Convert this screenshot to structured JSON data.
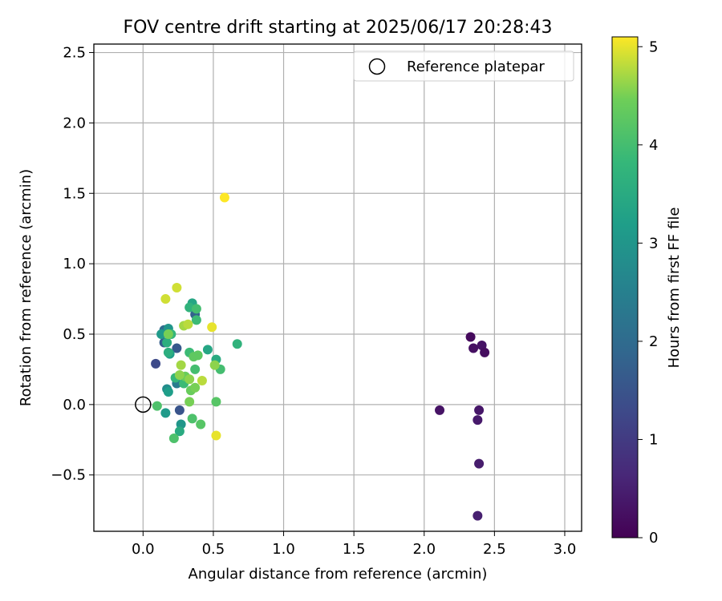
{
  "chart_data": {
    "type": "scatter",
    "title": "FOV centre drift starting at 2025/06/17 20:28:43",
    "xlabel": "Angular distance from reference (arcmin)",
    "ylabel": "Rotation from reference (arcmin)",
    "xlim": [
      -0.35,
      3.12
    ],
    "ylim": [
      -0.9,
      2.56
    ],
    "xticks": [
      0.0,
      0.5,
      1.0,
      1.5,
      2.0,
      2.5,
      3.0
    ],
    "xtick_labels": [
      "0.0",
      "0.5",
      "1.0",
      "1.5",
      "2.0",
      "2.5",
      "3.0"
    ],
    "yticks": [
      -0.5,
      0.0,
      0.5,
      1.0,
      1.5,
      2.0,
      2.5
    ],
    "ytick_labels": [
      "−0.5",
      "0.0",
      "0.5",
      "1.0",
      "1.5",
      "2.0",
      "2.5"
    ],
    "grid": true,
    "legend": {
      "position": "top-right",
      "entries": [
        "Reference platepar"
      ]
    },
    "reference_point": {
      "x": 0.0,
      "y": 0.0
    },
    "colorbar": {
      "label": "Hours from first FF file",
      "range": [
        0,
        5.1
      ],
      "ticks": [
        0,
        1,
        2,
        3,
        4,
        5
      ],
      "tick_labels": [
        "0",
        "1",
        "2",
        "3",
        "4",
        "5"
      ],
      "colormap": "viridis"
    },
    "points": [
      {
        "x": 2.33,
        "y": 0.48,
        "h": 0.15
      },
      {
        "x": 2.35,
        "y": 0.4,
        "h": 0.25
      },
      {
        "x": 2.41,
        "y": 0.42,
        "h": 0.3
      },
      {
        "x": 2.43,
        "y": 0.37,
        "h": 0.2
      },
      {
        "x": 2.11,
        "y": -0.04,
        "h": 0.3
      },
      {
        "x": 2.39,
        "y": -0.04,
        "h": 0.35
      },
      {
        "x": 2.38,
        "y": -0.11,
        "h": 0.4
      },
      {
        "x": 2.39,
        "y": -0.42,
        "h": 0.45
      },
      {
        "x": 2.38,
        "y": -0.79,
        "h": 0.5
      },
      {
        "x": 0.09,
        "y": 0.29,
        "h": 1.3
      },
      {
        "x": 0.26,
        "y": -0.04,
        "h": 1.5
      },
      {
        "x": 0.24,
        "y": 0.4,
        "h": 1.6
      },
      {
        "x": 0.15,
        "y": 0.44,
        "h": 1.7
      },
      {
        "x": 0.37,
        "y": 0.64,
        "h": 1.8
      },
      {
        "x": 0.15,
        "y": 0.53,
        "h": 2.0
      },
      {
        "x": 0.24,
        "y": 0.15,
        "h": 2.4
      },
      {
        "x": 0.17,
        "y": 0.11,
        "h": 2.8
      },
      {
        "x": 0.27,
        "y": -0.14,
        "h": 3.0
      },
      {
        "x": 0.18,
        "y": 0.54,
        "h": 3.0
      },
      {
        "x": 0.13,
        "y": 0.5,
        "h": 3.1
      },
      {
        "x": 0.16,
        "y": -0.06,
        "h": 3.1
      },
      {
        "x": 0.18,
        "y": 0.09,
        "h": 3.2
      },
      {
        "x": 0.19,
        "y": 0.36,
        "h": 3.2
      },
      {
        "x": 0.35,
        "y": 0.72,
        "h": 3.4
      },
      {
        "x": 0.46,
        "y": 0.39,
        "h": 3.4
      },
      {
        "x": 0.52,
        "y": 0.32,
        "h": 3.5
      },
      {
        "x": 0.26,
        "y": -0.19,
        "h": 3.5
      },
      {
        "x": 0.18,
        "y": 0.37,
        "h": 3.6
      },
      {
        "x": 0.17,
        "y": 0.44,
        "h": 3.6
      },
      {
        "x": 0.33,
        "y": 0.69,
        "h": 3.7
      },
      {
        "x": 0.67,
        "y": 0.43,
        "h": 3.7
      },
      {
        "x": 0.2,
        "y": 0.5,
        "h": 3.8
      },
      {
        "x": 0.23,
        "y": 0.19,
        "h": 3.8
      },
      {
        "x": 0.33,
        "y": 0.37,
        "h": 3.9
      },
      {
        "x": 0.29,
        "y": 0.15,
        "h": 3.9
      },
      {
        "x": 0.38,
        "y": 0.6,
        "h": 3.9
      },
      {
        "x": 0.38,
        "y": 0.68,
        "h": 4.0
      },
      {
        "x": 0.37,
        "y": 0.25,
        "h": 4.0
      },
      {
        "x": 0.55,
        "y": 0.25,
        "h": 4.0
      },
      {
        "x": 0.22,
        "y": -0.24,
        "h": 4.1
      },
      {
        "x": 0.1,
        "y": -0.01,
        "h": 4.1
      },
      {
        "x": 0.35,
        "y": -0.1,
        "h": 4.1
      },
      {
        "x": 0.41,
        "y": -0.14,
        "h": 4.2
      },
      {
        "x": 0.52,
        "y": 0.02,
        "h": 4.2
      },
      {
        "x": 0.36,
        "y": 0.34,
        "h": 4.3
      },
      {
        "x": 0.39,
        "y": 0.35,
        "h": 4.3
      },
      {
        "x": 0.3,
        "y": 0.2,
        "h": 4.4
      },
      {
        "x": 0.34,
        "y": 0.1,
        "h": 4.4
      },
      {
        "x": 0.37,
        "y": 0.12,
        "h": 4.5
      },
      {
        "x": 0.33,
        "y": 0.02,
        "h": 4.5
      },
      {
        "x": 0.18,
        "y": 0.5,
        "h": 4.5
      },
      {
        "x": 0.26,
        "y": 0.21,
        "h": 4.6
      },
      {
        "x": 0.33,
        "y": 0.18,
        "h": 4.6
      },
      {
        "x": 0.51,
        "y": 0.28,
        "h": 4.6
      },
      {
        "x": 0.27,
        "y": 0.28,
        "h": 4.7
      },
      {
        "x": 0.29,
        "y": 0.56,
        "h": 4.7
      },
      {
        "x": 0.32,
        "y": 0.57,
        "h": 4.8
      },
      {
        "x": 0.42,
        "y": 0.17,
        "h": 4.8
      },
      {
        "x": 0.24,
        "y": 0.83,
        "h": 4.9
      },
      {
        "x": 0.16,
        "y": 0.75,
        "h": 4.9
      },
      {
        "x": 0.49,
        "y": 0.55,
        "h": 5.0
      },
      {
        "x": 0.52,
        "y": -0.22,
        "h": 5.0
      },
      {
        "x": 0.58,
        "y": 1.47,
        "h": 5.1
      }
    ]
  }
}
